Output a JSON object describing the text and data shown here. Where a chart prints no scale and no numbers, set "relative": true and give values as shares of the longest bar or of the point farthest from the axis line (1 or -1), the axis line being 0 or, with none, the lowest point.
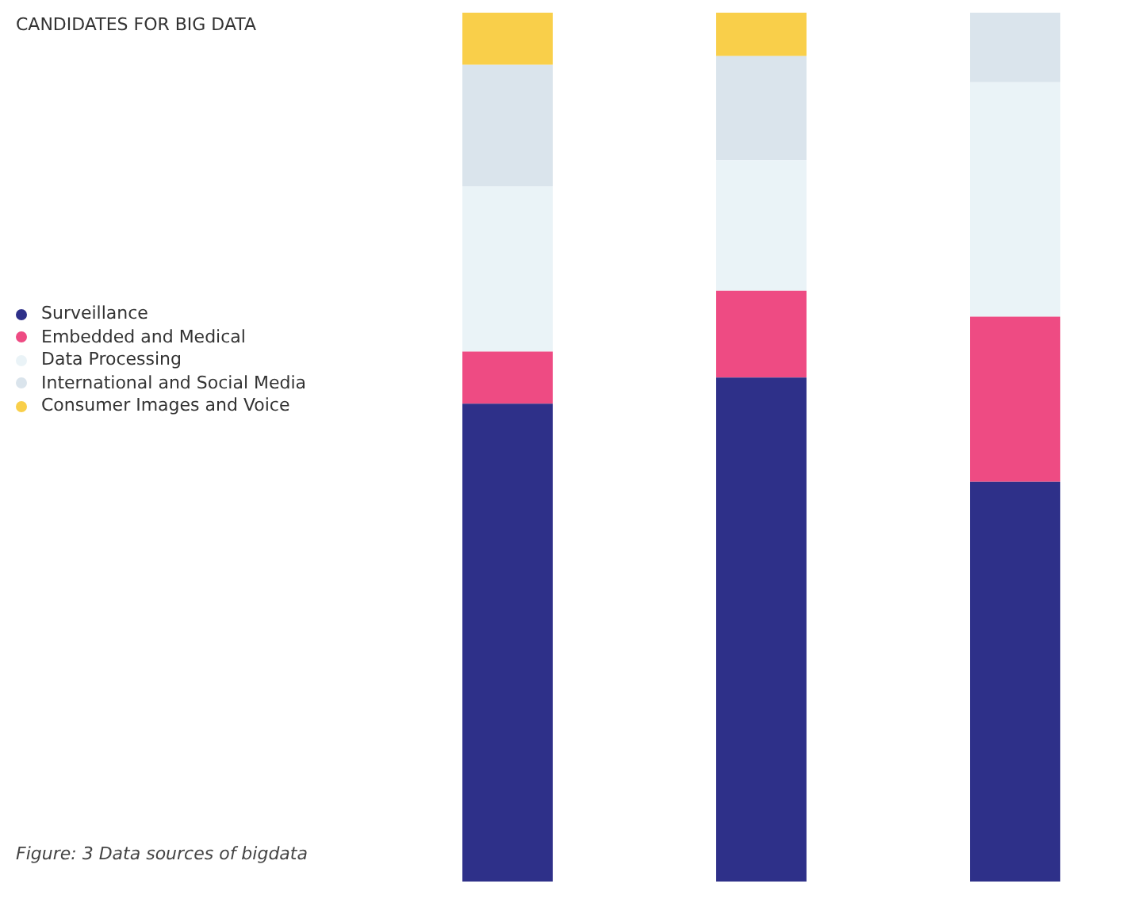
{
  "chart_data": {
    "type": "bar",
    "title": "CANDIDATES FOR BIG DATA",
    "categories": [
      null,
      null,
      null
    ],
    "stacked": true,
    "relative": true,
    "legend": "left",
    "series": [
      {
        "name": "Surveillance",
        "color": "#2e3089",
        "values": [
          0.55,
          0.58,
          0.46
        ]
      },
      {
        "name": "Embedded and Medical",
        "color": "#ee4b83",
        "values": [
          0.06,
          0.1,
          0.19
        ]
      },
      {
        "name": "Data Processing",
        "color": "#eaf3f7",
        "values": [
          0.19,
          0.15,
          0.27
        ]
      },
      {
        "name": "International and Social Media",
        "color": "#dae4ec",
        "values": [
          0.14,
          0.12,
          0.08
        ]
      },
      {
        "name": "Consumer Images and Voice",
        "color": "#f9cf4a",
        "values": [
          0.06,
          0.05,
          0
        ]
      }
    ],
    "annotations": [
      "Figure: 3 Data sources of bigdata"
    ]
  }
}
